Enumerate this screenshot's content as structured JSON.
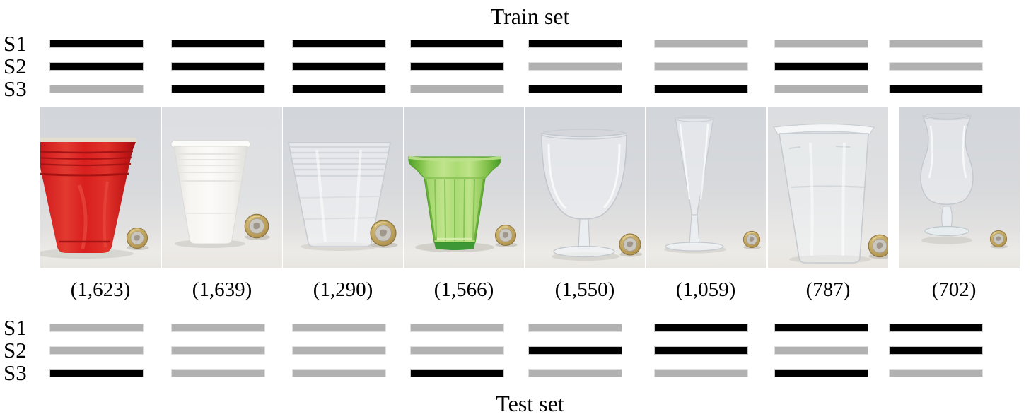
{
  "figure": {
    "train": {
      "title": "Train set"
    },
    "test": {
      "title": "Test set"
    },
    "sensor_rows": [
      "S1",
      "S2",
      "S3"
    ],
    "legend_colors": {
      "selected": "#000000",
      "unselected": "#b1b1b1"
    },
    "columns": [
      {
        "object": "red plastic party cup",
        "count": "(1,623)",
        "train_pattern": [
          "on",
          "on",
          "off"
        ],
        "test_pattern": [
          "off",
          "off",
          "on"
        ]
      },
      {
        "object": "white plastic cup",
        "count": "(1,639)",
        "train_pattern": [
          "on",
          "on",
          "on"
        ],
        "test_pattern": [
          "off",
          "off",
          "off"
        ]
      },
      {
        "object": "clear plastic cup",
        "count": "(1,290)",
        "train_pattern": [
          "on",
          "on",
          "on"
        ],
        "test_pattern": [
          "off",
          "off",
          "off"
        ]
      },
      {
        "object": "green glass tumbler",
        "count": "(1,566)",
        "train_pattern": [
          "on",
          "on",
          "off"
        ],
        "test_pattern": [
          "off",
          "off",
          "on"
        ]
      },
      {
        "object": "plastic wine goblet",
        "count": "(1,550)",
        "train_pattern": [
          "on",
          "off",
          "on"
        ],
        "test_pattern": [
          "off",
          "on",
          "off"
        ]
      },
      {
        "object": "plastic champagne flute",
        "count": "(1,059)",
        "train_pattern": [
          "off",
          "off",
          "on"
        ],
        "test_pattern": [
          "on",
          "on",
          "off"
        ]
      },
      {
        "object": "clear plastic pint cup",
        "count": "(787)",
        "train_pattern": [
          "off",
          "on",
          "off"
        ],
        "test_pattern": [
          "on",
          "off",
          "on"
        ]
      },
      {
        "object": "hurricane cocktail glass",
        "count": "(702)",
        "train_pattern": [
          "off",
          "off",
          "on"
        ],
        "test_pattern": [
          "on",
          "on",
          "off"
        ]
      }
    ]
  }
}
